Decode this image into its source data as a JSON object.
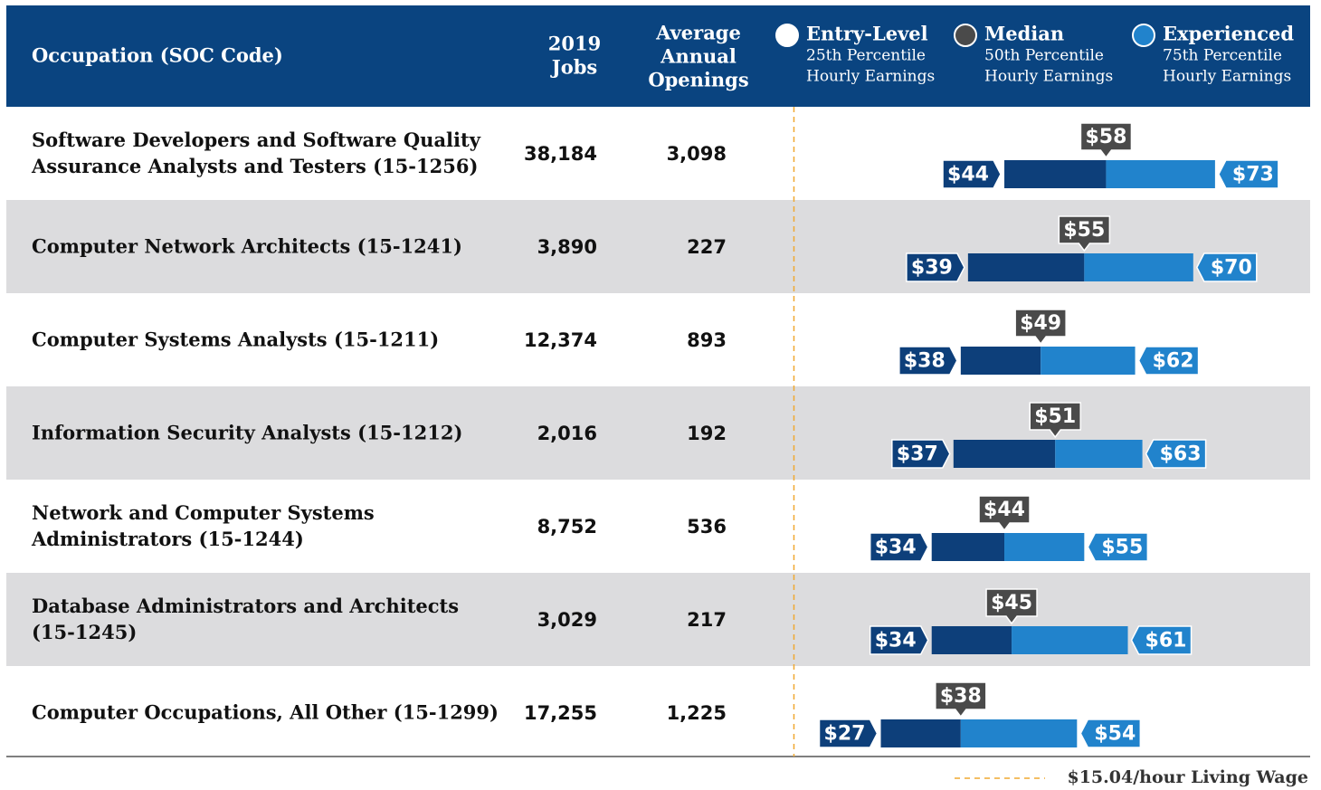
{
  "header": {
    "occupation": "Occupation (SOC Code)",
    "jobs": [
      "2019",
      "Jobs"
    ],
    "openings": [
      "Average",
      "Annual",
      "Openings"
    ],
    "legend": [
      {
        "name": "Entry-Level",
        "sub": [
          "25th Percentile",
          "Hourly Earnings"
        ]
      },
      {
        "name": "Median",
        "sub": [
          "50th Percentile",
          "Hourly Earnings"
        ]
      },
      {
        "name": "Experienced",
        "sub": [
          "75th Percentile",
          "Hourly Earnings"
        ]
      }
    ]
  },
  "rows": [
    {
      "occupation": [
        "Software Developers and Software Quality",
        "Assurance Analysts and Testers (15-1256)"
      ],
      "jobs": "38,184",
      "openings": "3,098",
      "wages": [
        44,
        58,
        73
      ],
      "wage_labels": [
        "$44",
        "$58",
        "$73"
      ]
    },
    {
      "occupation": [
        "Computer Network Architects (15-1241)"
      ],
      "jobs": "3,890",
      "openings": "227",
      "wages": [
        39,
        55,
        70
      ],
      "wage_labels": [
        "$39",
        "$55",
        "$70"
      ]
    },
    {
      "occupation": [
        "Computer Systems Analysts (15-1211)"
      ],
      "jobs": "12,374",
      "openings": "893",
      "wages": [
        38,
        49,
        62
      ],
      "wage_labels": [
        "$38",
        "$49",
        "$62"
      ]
    },
    {
      "occupation": [
        "Information Security Analysts (15-1212)"
      ],
      "jobs": "2,016",
      "openings": "192",
      "wages": [
        37,
        51,
        63
      ],
      "wage_labels": [
        "$37",
        "$51",
        "$63"
      ]
    },
    {
      "occupation": [
        "Network and Computer Systems",
        "Administrators (15-1244)"
      ],
      "jobs": "8,752",
      "openings": "536",
      "wages": [
        34,
        44,
        55
      ],
      "wage_labels": [
        "$34",
        "$44",
        "$55"
      ]
    },
    {
      "occupation": [
        "Database Administrators and Architects",
        "(15-1245)"
      ],
      "jobs": "3,029",
      "openings": "217",
      "wages": [
        34,
        45,
        61
      ],
      "wage_labels": [
        "$34",
        "$45",
        "$61"
      ]
    },
    {
      "occupation": [
        "Computer Occupations, All Other (15-1299)"
      ],
      "jobs": "17,255",
      "openings": "1,225",
      "wages": [
        27,
        38,
        54
      ],
      "wage_labels": [
        "$27",
        "$38",
        "$54"
      ]
    }
  ],
  "living_wage": {
    "value": 15.04,
    "label": "$15.04/hour Living Wage"
  }
}
